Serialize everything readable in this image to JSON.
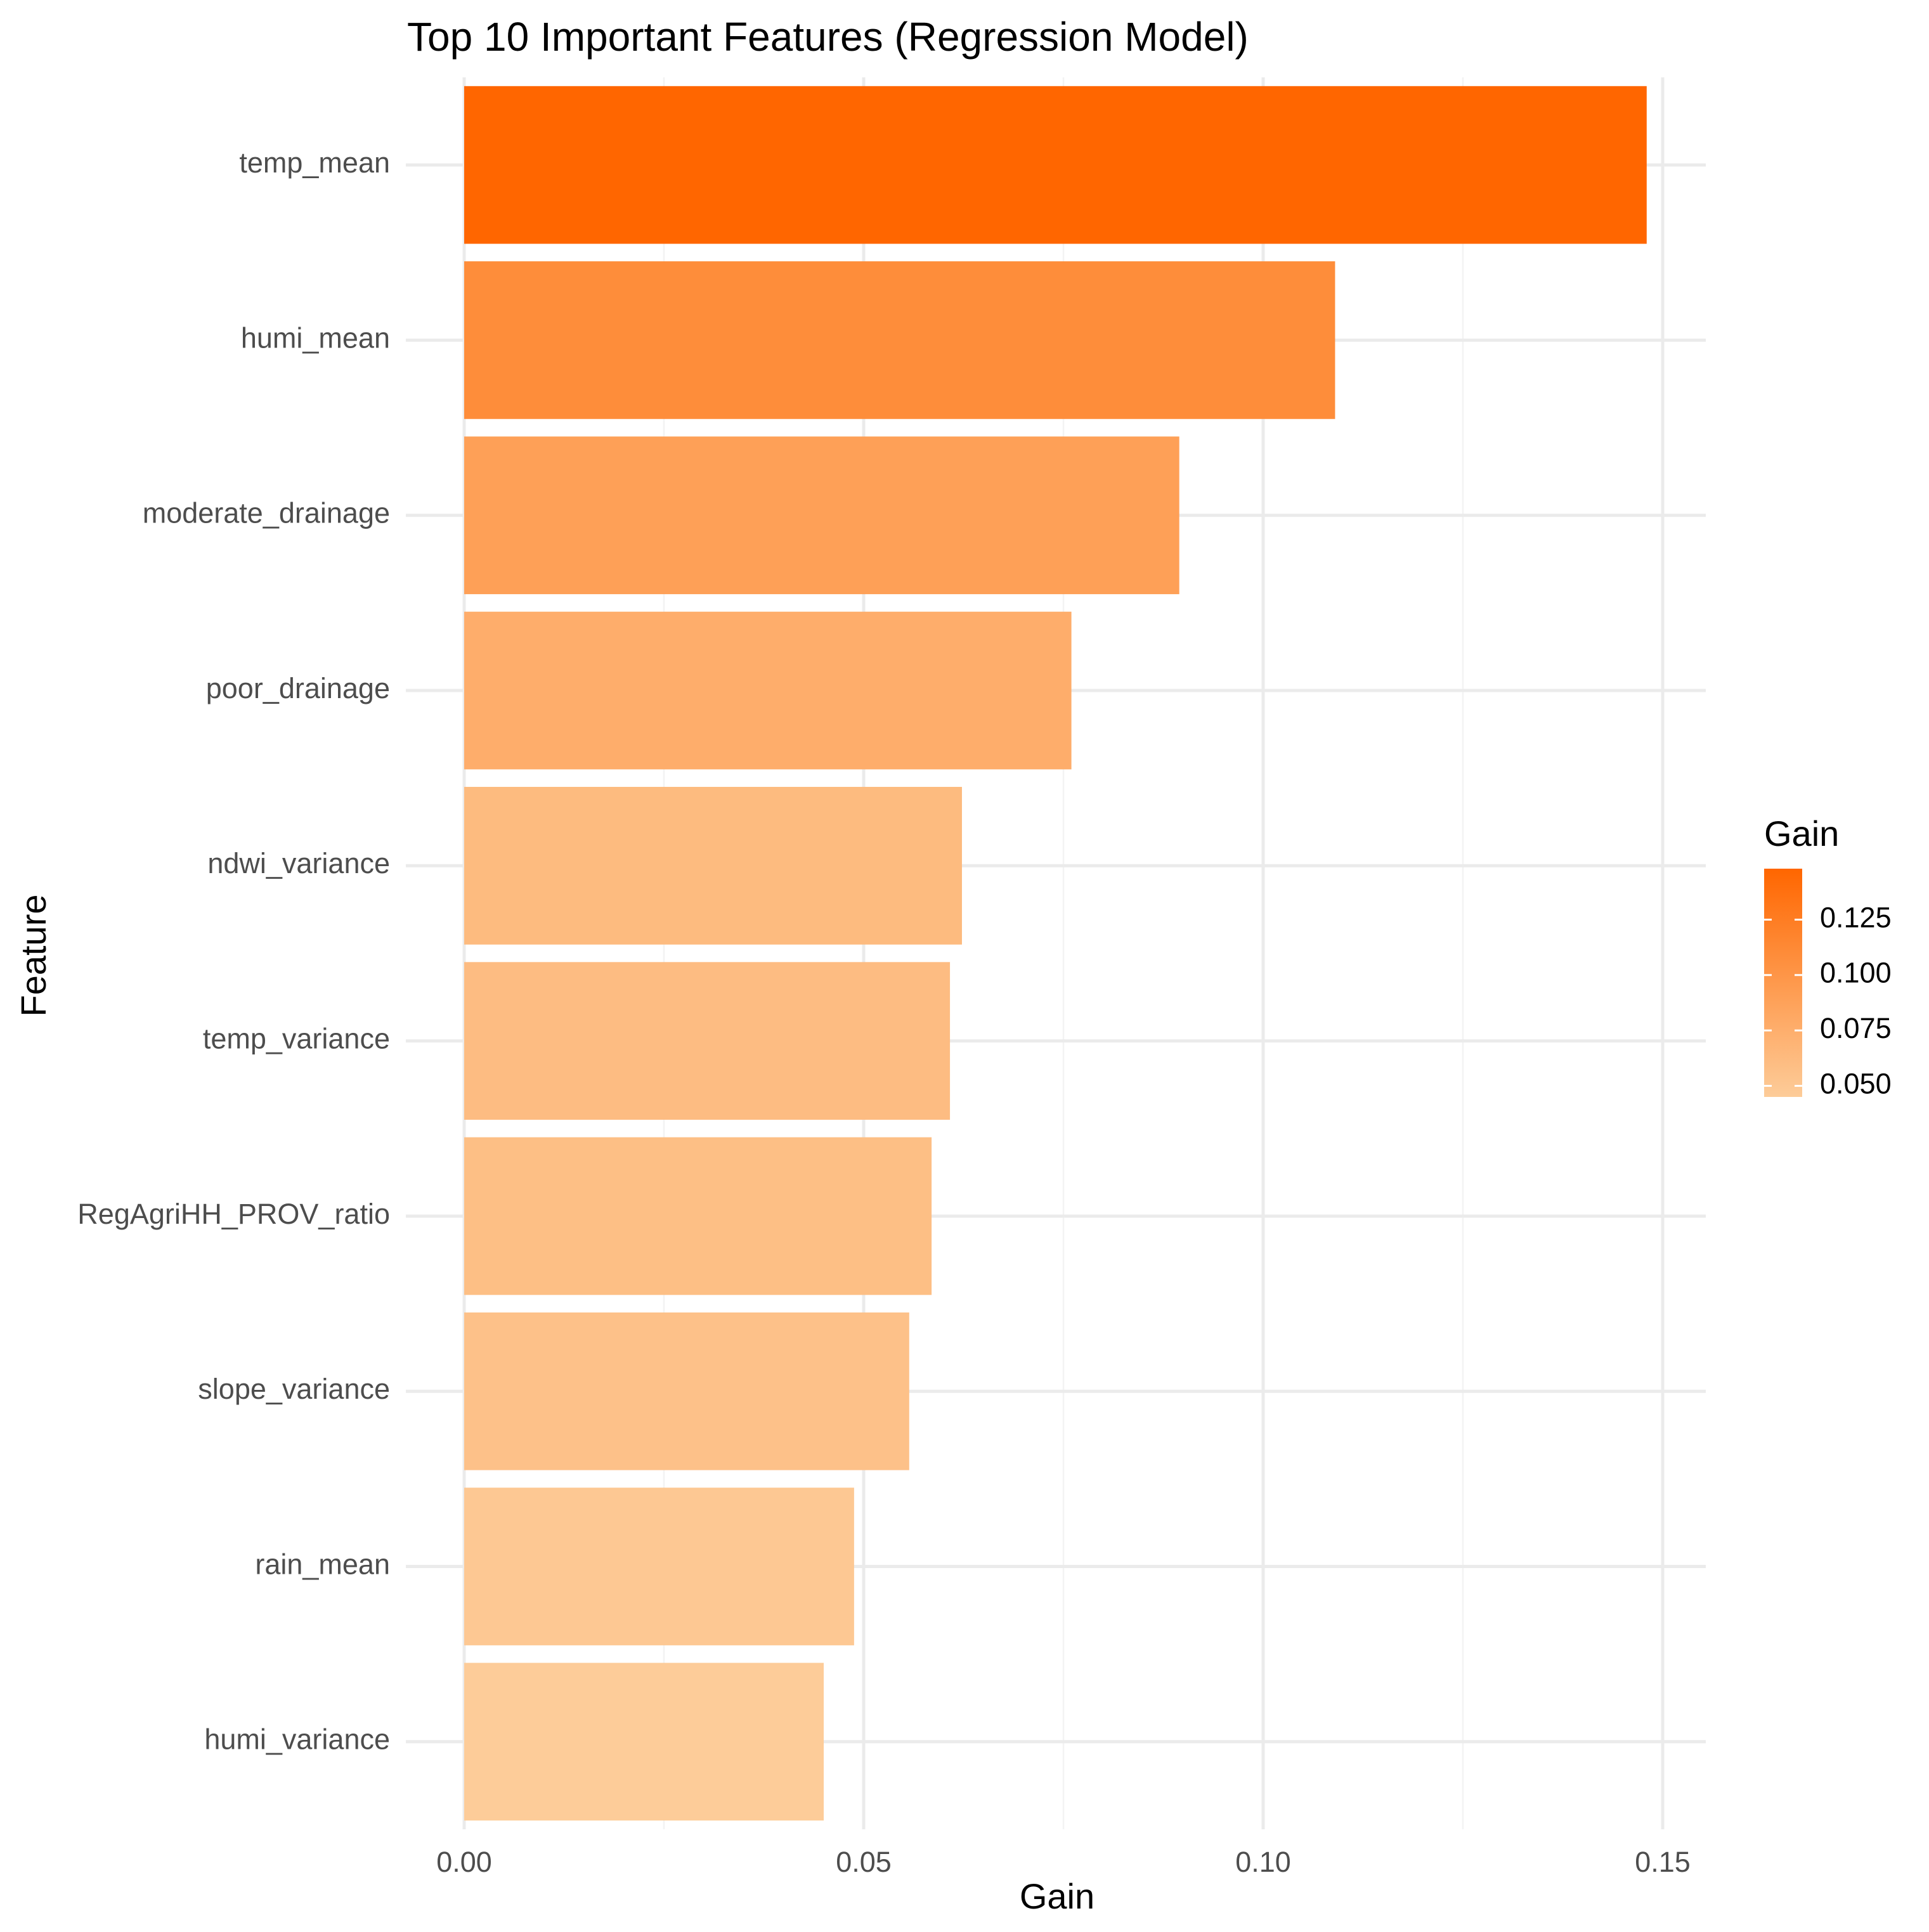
{
  "chart_data": {
    "type": "bar",
    "orientation": "horizontal",
    "title": "Top 10 Important Features (Regression Model)",
    "xlabel": "Gain",
    "ylabel": "Feature",
    "categories": [
      "temp_mean",
      "humi_mean",
      "moderate_drainage",
      "poor_drainage",
      "ndwi_variance",
      "temp_variance",
      "RegAgriHH_PROV_ratio",
      "slope_variance",
      "rain_mean",
      "humi_variance"
    ],
    "values": [
      0.148,
      0.109,
      0.0895,
      0.076,
      0.0623,
      0.0608,
      0.0585,
      0.0557,
      0.0488,
      0.045
    ],
    "xlim": [
      0,
      0.155
    ],
    "x_ticks": [
      {
        "value": 0,
        "label": "0.00"
      },
      {
        "value": 0.05,
        "label": "0.05"
      },
      {
        "value": 0.1,
        "label": "0.10"
      },
      {
        "value": 0.15,
        "label": "0.15"
      }
    ],
    "grid": true,
    "legend": {
      "title": "Gain",
      "position": "right",
      "type": "colorbar",
      "min": 0.045,
      "max": 0.148,
      "ticks": [
        {
          "value": 0.05,
          "label": "0.050"
        },
        {
          "value": 0.075,
          "label": "0.075"
        },
        {
          "value": 0.1,
          "label": "0.100"
        },
        {
          "value": 0.125,
          "label": "0.125"
        }
      ]
    },
    "colors": {
      "low": "#fdcc99",
      "high": "#ff6600"
    }
  }
}
